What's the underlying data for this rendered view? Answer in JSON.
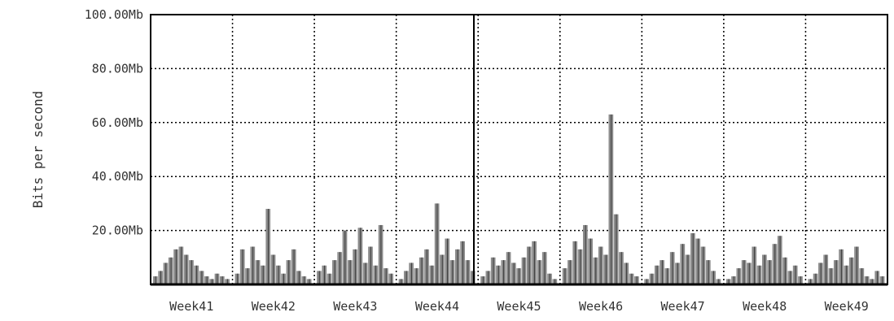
{
  "chart_data": {
    "type": "area",
    "title": "",
    "xlabel": "",
    "ylabel": "Bits per second",
    "ylim": [
      0,
      100
    ],
    "y_unit": "Mb",
    "y_ticks": [
      {
        "value": 20,
        "label": "20.00Mb"
      },
      {
        "value": 40,
        "label": "40.00Mb"
      },
      {
        "value": 60,
        "label": "60.00Mb"
      },
      {
        "value": 80,
        "label": "80.00Mb"
      },
      {
        "value": 100,
        "label": "100.00Mb"
      }
    ],
    "categories": [
      "Week41",
      "Week42",
      "Week43",
      "Week44",
      "Week45",
      "Week46",
      "Week47",
      "Week48",
      "Week49"
    ],
    "grid": true,
    "grid_style": "dotted",
    "series": [
      {
        "name": "",
        "color": "#8c8c8c",
        "values": [
          [
            3,
            5,
            8,
            10,
            13,
            14,
            11,
            9,
            7,
            5,
            3,
            2,
            4,
            3,
            2
          ],
          [
            4,
            13,
            6,
            14,
            9,
            7,
            28,
            11,
            7,
            4,
            9,
            13,
            5,
            3,
            2
          ],
          [
            5,
            7,
            4,
            9,
            12,
            20,
            9,
            13,
            21,
            8,
            14,
            7,
            22,
            6,
            4
          ],
          [
            2,
            5,
            8,
            6,
            10,
            13,
            7,
            30,
            11,
            17,
            9,
            13,
            16,
            9,
            5
          ],
          [
            3,
            5,
            10,
            7,
            9,
            12,
            8,
            6,
            10,
            14,
            16,
            9,
            12,
            4,
            2
          ],
          [
            6,
            9,
            16,
            13,
            22,
            17,
            10,
            14,
            11,
            63,
            26,
            12,
            8,
            4,
            3
          ],
          [
            2,
            4,
            7,
            9,
            6,
            12,
            8,
            15,
            11,
            19,
            17,
            14,
            9,
            5,
            2
          ],
          [
            2,
            3,
            6,
            9,
            8,
            14,
            7,
            11,
            9,
            15,
            18,
            10,
            5,
            7,
            3
          ],
          [
            2,
            4,
            8,
            11,
            6,
            9,
            13,
            7,
            10,
            14,
            6,
            3,
            2,
            5,
            3
          ]
        ]
      }
    ]
  }
}
